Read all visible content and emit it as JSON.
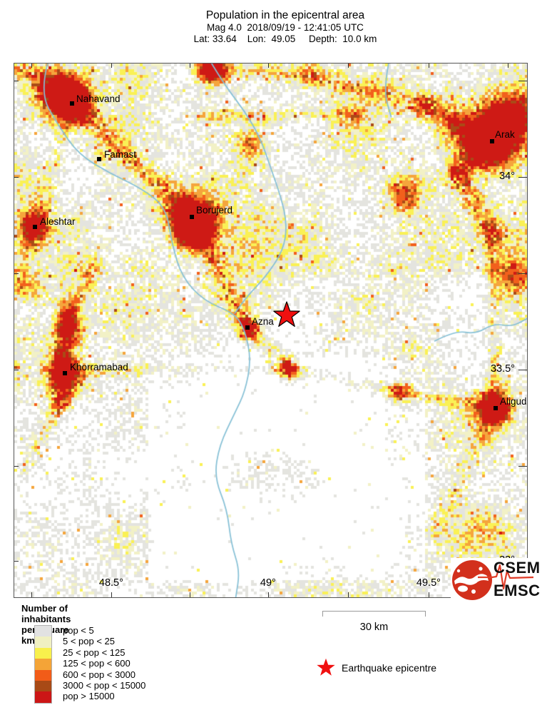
{
  "header": {
    "title": "Population in the epicentral area",
    "subtitle1": "Mag 4.0  2018/09/19 - 12:41:05 UTC",
    "subtitle2": "Lat: 33.64    Lon:  49.05     Depth:  10.0 km"
  },
  "map": {
    "cities": [
      {
        "name": "Nahavand",
        "marker": [
          81,
          56
        ],
        "label": [
          87,
          42
        ]
      },
      {
        "name": "Famast",
        "marker": [
          119,
          134
        ],
        "label": [
          126,
          120
        ]
      },
      {
        "name": "Borujerd",
        "marker": [
          249,
          215
        ],
        "label": [
          255,
          198
        ]
      },
      {
        "name": "Aleshtar",
        "marker": [
          29,
          229
        ],
        "label": [
          36,
          214
        ]
      },
      {
        "name": "Azna",
        "marker": [
          327,
          370
        ],
        "label": [
          333,
          354
        ]
      },
      {
        "name": "Khorramabad",
        "marker": [
          71,
          434
        ],
        "label": [
          78,
          418
        ]
      },
      {
        "name": "Aligudarz",
        "marker": [
          675,
          483
        ],
        "label": [
          681,
          466
        ]
      },
      {
        "name": "Arak",
        "marker": [
          670,
          109
        ],
        "label": [
          674,
          92
        ]
      }
    ],
    "epicenter": {
      "fx": 0.53,
      "fy": 0.471
    },
    "lat_labels": [
      {
        "text": "34°",
        "fy": 0.213
      },
      {
        "text": "33.5°",
        "fy": 0.574
      },
      {
        "text": "33°",
        "fy": 0.932
      }
    ],
    "lon_labels": [
      {
        "text": "48.5°",
        "fx": 0.189
      },
      {
        "text": "49°",
        "fx": 0.495
      },
      {
        "text": "49.5°",
        "fx": 0.808
      }
    ],
    "lat_ticks_fy": [
      0.032,
      0.213,
      0.393,
      0.574,
      0.754,
      0.932
    ],
    "lon_ticks_fx": [
      0.033,
      0.189,
      0.342,
      0.495,
      0.651,
      0.808,
      0.962
    ]
  },
  "legend": {
    "title": "Number of inhabitants per square km",
    "classes": [
      {
        "label": "pop < 5",
        "color": "#e2e2e2"
      },
      {
        "label": "5 < pop < 25",
        "color": "#f0f0c2"
      },
      {
        "label": "25 < pop < 125",
        "color": "#f8f04c"
      },
      {
        "label": "125 < pop < 600",
        "color": "#f4a437"
      },
      {
        "label": "600 < pop < 3000",
        "color": "#f25c18"
      },
      {
        "label": "3000 < pop < 15000",
        "color": "#a84a16"
      },
      {
        "label": "pop > 15000",
        "color": "#cc1616"
      }
    ]
  },
  "scale_bar": {
    "label": "30 km"
  },
  "epicenter_legend": {
    "label": "Earthquake epicentre",
    "star_color": "#f01010"
  },
  "logo": {
    "line1": "CSEM",
    "line2": "EMSC",
    "globe_color": "#d2301c",
    "seis_color": "#e03c28"
  },
  "heatmap": {
    "seed": 7,
    "cell_size": 4,
    "base": 0.16,
    "noise_amp": 0.34,
    "noise_scale": 9,
    "jitter": 0.34,
    "sparkle_chance": 0.022,
    "sparkle_boost": 0.3,
    "palette": [
      "#ffffff",
      "#e4e4df",
      "#f2f1c6",
      "#faf155",
      "#f5a53c",
      "#f2601c",
      "#aa4b17",
      "#ce1a15"
    ],
    "thresholds": [
      0.33,
      0.46,
      0.56,
      0.67,
      0.79,
      0.9,
      0.98
    ],
    "regions": [
      [
        0.0,
        0.0,
        1.0,
        0.4,
        0.09
      ],
      [
        0.26,
        0.55,
        0.8,
        0.97,
        -0.13
      ],
      [
        0.34,
        0.63,
        0.72,
        0.92,
        -0.05
      ],
      [
        0.8,
        0.3,
        1.0,
        0.6,
        0.03
      ]
    ],
    "hotspots": [
      [
        0.385,
        0.01,
        0.02,
        1.15
      ],
      [
        0.112,
        0.075,
        0.03,
        0.85
      ],
      [
        0.085,
        0.045,
        0.035,
        0.6
      ],
      [
        0.165,
        0.179,
        0.012,
        0.3
      ],
      [
        0.345,
        0.287,
        0.032,
        1.05
      ],
      [
        0.352,
        0.32,
        0.025,
        0.75
      ],
      [
        0.04,
        0.305,
        0.022,
        0.7
      ],
      [
        0.455,
        0.495,
        0.014,
        0.45
      ],
      [
        0.098,
        0.58,
        0.028,
        0.9
      ],
      [
        0.105,
        0.5,
        0.02,
        0.65
      ],
      [
        0.936,
        0.645,
        0.025,
        0.85
      ],
      [
        0.929,
        0.147,
        0.038,
        1.0
      ],
      [
        0.965,
        0.095,
        0.03,
        0.7
      ],
      [
        0.76,
        0.245,
        0.025,
        0.55
      ],
      [
        0.535,
        0.575,
        0.018,
        0.55
      ],
      [
        0.75,
        0.616,
        0.018,
        0.45
      ],
      [
        0.97,
        0.4,
        0.025,
        0.45
      ],
      [
        0.46,
        0.15,
        0.02,
        0.4
      ],
      [
        0.92,
        0.88,
        0.04,
        0.3
      ],
      [
        0.03,
        0.42,
        0.02,
        0.4
      ]
    ],
    "corridors": [
      [
        0.112,
        0.075,
        0.345,
        0.287,
        0.022,
        0.5
      ],
      [
        0.345,
        0.287,
        0.455,
        0.495,
        0.018,
        0.45
      ],
      [
        0.455,
        0.495,
        0.535,
        0.572,
        0.018,
        0.45
      ],
      [
        0.0,
        0.0,
        0.112,
        0.075,
        0.028,
        0.55
      ],
      [
        0.385,
        0.012,
        0.58,
        0.025,
        0.015,
        0.35
      ],
      [
        0.58,
        0.025,
        0.8,
        0.08,
        0.02,
        0.45
      ],
      [
        0.8,
        0.08,
        0.929,
        0.147,
        0.025,
        0.55
      ],
      [
        0.929,
        0.147,
        0.862,
        0.21,
        0.022,
        0.5
      ],
      [
        0.862,
        0.21,
        0.93,
        0.31,
        0.022,
        0.5
      ],
      [
        0.93,
        0.31,
        0.936,
        0.645,
        0.016,
        0.35
      ],
      [
        0.105,
        0.47,
        0.092,
        0.635,
        0.02,
        0.65
      ],
      [
        0.092,
        0.635,
        0.02,
        0.76,
        0.018,
        0.4
      ],
      [
        0.105,
        0.47,
        0.155,
        0.38,
        0.016,
        0.35
      ],
      [
        0.14,
        0.578,
        0.53,
        0.568,
        0.012,
        0.28
      ],
      [
        0.535,
        0.572,
        0.75,
        0.616,
        0.013,
        0.33
      ],
      [
        0.75,
        0.616,
        0.936,
        0.645,
        0.013,
        0.38
      ],
      [
        0.36,
        0.1,
        0.67,
        0.095,
        0.012,
        0.4
      ],
      [
        0.04,
        0.305,
        0.112,
        0.075,
        0.016,
        0.3
      ],
      [
        0.0,
        0.42,
        0.04,
        0.305,
        0.018,
        0.35
      ],
      [
        0.936,
        0.645,
        0.82,
        0.88,
        0.022,
        0.32
      ]
    ],
    "rivers": [
      [
        [
          0.065,
          0
        ],
        [
          0.05,
          0.055
        ],
        [
          0.085,
          0.115
        ],
        [
          0.125,
          0.17
        ],
        [
          0.185,
          0.205
        ],
        [
          0.25,
          0.235
        ],
        [
          0.296,
          0.27
        ],
        [
          0.308,
          0.34
        ],
        [
          0.327,
          0.4
        ],
        [
          0.37,
          0.445
        ],
        [
          0.43,
          0.468
        ],
        [
          0.45,
          0.5
        ],
        [
          0.462,
          0.555
        ],
        [
          0.45,
          0.615
        ],
        [
          0.43,
          0.655
        ],
        [
          0.4,
          0.715
        ],
        [
          0.39,
          0.775
        ],
        [
          0.415,
          0.835
        ],
        [
          0.423,
          0.9
        ],
        [
          0.44,
          0.95
        ],
        [
          0.432,
          1.0
        ]
      ],
      [
        [
          0.385,
          0
        ],
        [
          0.41,
          0.04
        ],
        [
          0.45,
          0.09
        ],
        [
          0.48,
          0.14
        ],
        [
          0.5,
          0.195
        ],
        [
          0.52,
          0.25
        ],
        [
          0.532,
          0.3
        ],
        [
          0.525,
          0.35
        ],
        [
          0.49,
          0.4
        ],
        [
          0.455,
          0.435
        ],
        [
          0.43,
          0.468
        ]
      ],
      [
        [
          0.82,
          0.52
        ],
        [
          0.86,
          0.5
        ],
        [
          0.9,
          0.507
        ],
        [
          0.935,
          0.487
        ],
        [
          0.97,
          0.493
        ],
        [
          1.0,
          0.478
        ]
      ],
      [
        [
          0.73,
          0
        ],
        [
          0.72,
          0.05
        ],
        [
          0.735,
          0.1
        ]
      ]
    ],
    "river_color": "#85c0d6"
  }
}
